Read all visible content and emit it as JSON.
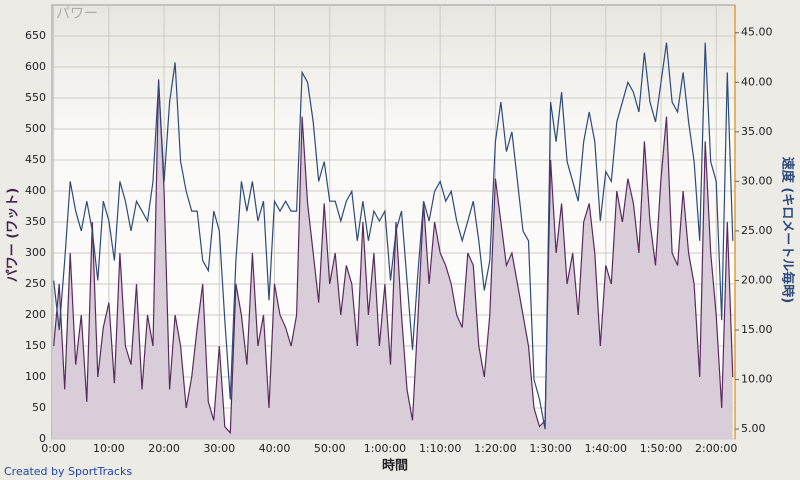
{
  "chart_data": {
    "type": "area-line",
    "watermark": "パワー",
    "y_label": "パワー (ワット)",
    "y2_label": "速度 (キロメートル毎時)",
    "x_label": "時間",
    "credit": "Created by SportTracks",
    "x": [
      0,
      1,
      2,
      3,
      4,
      5,
      6,
      7,
      8,
      9,
      10,
      11,
      12,
      13,
      14,
      15,
      16,
      17,
      18,
      19,
      20,
      21,
      22,
      23,
      24,
      25,
      26,
      27,
      28,
      29,
      30,
      31,
      32,
      33,
      34,
      35,
      36,
      37,
      38,
      39,
      40,
      41,
      42,
      43,
      44,
      45,
      46,
      47,
      48,
      49,
      50,
      51,
      52,
      53,
      54,
      55,
      56,
      57,
      58,
      59,
      60,
      61,
      62,
      63,
      64,
      65,
      66,
      67,
      68,
      69,
      70,
      71,
      72,
      73,
      74,
      75,
      76,
      77,
      78,
      79,
      80,
      81,
      82,
      83,
      84,
      85,
      86,
      87,
      88,
      89,
      90,
      91,
      92,
      93,
      94,
      95,
      96,
      97,
      98,
      99,
      100,
      101,
      102,
      103,
      104,
      105,
      106,
      107,
      108,
      109,
      110,
      111,
      112,
      113,
      114,
      115,
      116,
      117,
      118,
      119,
      120,
      121,
      122,
      123
    ],
    "series": [
      {
        "name": "パワー",
        "color": "#5a2a5e",
        "fill": "#d8cdd8",
        "values": [
          150,
          250,
          80,
          300,
          120,
          200,
          60,
          350,
          100,
          180,
          220,
          90,
          300,
          150,
          120,
          250,
          80,
          200,
          150,
          580,
          400,
          80,
          200,
          150,
          50,
          100,
          180,
          250,
          60,
          30,
          150,
          20,
          10,
          250,
          200,
          120,
          300,
          150,
          200,
          50,
          250,
          200,
          180,
          150,
          200,
          520,
          380,
          300,
          220,
          380,
          250,
          300,
          200,
          280,
          250,
          150,
          350,
          200,
          300,
          150,
          250,
          120,
          350,
          200,
          80,
          30,
          200,
          380,
          250,
          350,
          300,
          280,
          250,
          200,
          180,
          300,
          280,
          150,
          100,
          200,
          420,
          350,
          280,
          300,
          250,
          200,
          150,
          50,
          20,
          30,
          450,
          300,
          380,
          250,
          300,
          200,
          350,
          380,
          300,
          150,
          280,
          250,
          400,
          350,
          420,
          380,
          300,
          480,
          350,
          280,
          420,
          520,
          300,
          280,
          400,
          300,
          250,
          100,
          480,
          300,
          200,
          50,
          350,
          100
        ]
      },
      {
        "name": "速度",
        "color": "#2c4a7a",
        "axis": "y2",
        "values": [
          20,
          15,
          22,
          30,
          27,
          25,
          28,
          25,
          20,
          28,
          26,
          22,
          30,
          28,
          25,
          28,
          27,
          26,
          30,
          40,
          30,
          38,
          42,
          32,
          29,
          27,
          27,
          22,
          21,
          27,
          25,
          16,
          8,
          22,
          30,
          27,
          30,
          26,
          28,
          18,
          28,
          27,
          28,
          27,
          27,
          41,
          40,
          36,
          30,
          32,
          28,
          28,
          26,
          28,
          29,
          24,
          28,
          24,
          27,
          26,
          27,
          20,
          25,
          27,
          20,
          13,
          21,
          28,
          26,
          29,
          30,
          28,
          29,
          26,
          24,
          26,
          28,
          24,
          19,
          22,
          34,
          38,
          33,
          35,
          30,
          25,
          24,
          10,
          8,
          5,
          38,
          34,
          39,
          32,
          30,
          28,
          34,
          37,
          34,
          26,
          31,
          30,
          36,
          38,
          40,
          39,
          37,
          43,
          38,
          36,
          40,
          44,
          38,
          37,
          41,
          36,
          32,
          24,
          44,
          32,
          30,
          16,
          41,
          24
        ]
      }
    ],
    "xlim": [
      -0.3,
      123.4
    ],
    "xticks": [
      {
        "value": 0,
        "label": "0:00"
      },
      {
        "value": 10,
        "label": "10:00"
      },
      {
        "value": 20,
        "label": "20:00"
      },
      {
        "value": 30,
        "label": "30:00"
      },
      {
        "value": 40,
        "label": "40:00"
      },
      {
        "value": 50,
        "label": "50:00"
      },
      {
        "value": 60,
        "label": "1:00:00"
      },
      {
        "value": 70,
        "label": "1:10:00"
      },
      {
        "value": 80,
        "label": "1:20:00"
      },
      {
        "value": 90,
        "label": "1:30:00"
      },
      {
        "value": 100,
        "label": "1:40:00"
      },
      {
        "value": 110,
        "label": "1:50:00"
      },
      {
        "value": 120,
        "label": "2:00:00"
      }
    ],
    "ylim": [
      0,
      700
    ],
    "yticks": [
      0,
      50,
      100,
      150,
      200,
      250,
      300,
      350,
      400,
      450,
      500,
      550,
      600,
      650
    ],
    "y2lim": [
      4,
      47.8
    ],
    "y2ticks": [
      {
        "value": 5,
        "label": "5.00"
      },
      {
        "value": 10,
        "label": "10.00"
      },
      {
        "value": 15,
        "label": "15.00"
      },
      {
        "value": 20,
        "label": "20.00"
      },
      {
        "value": 25,
        "label": "25.00"
      },
      {
        "value": 30,
        "label": "30.00"
      },
      {
        "value": 35,
        "label": "35.00"
      },
      {
        "value": 40,
        "label": "40.00"
      },
      {
        "value": 45,
        "label": "45.00"
      }
    ],
    "grid": true
  }
}
